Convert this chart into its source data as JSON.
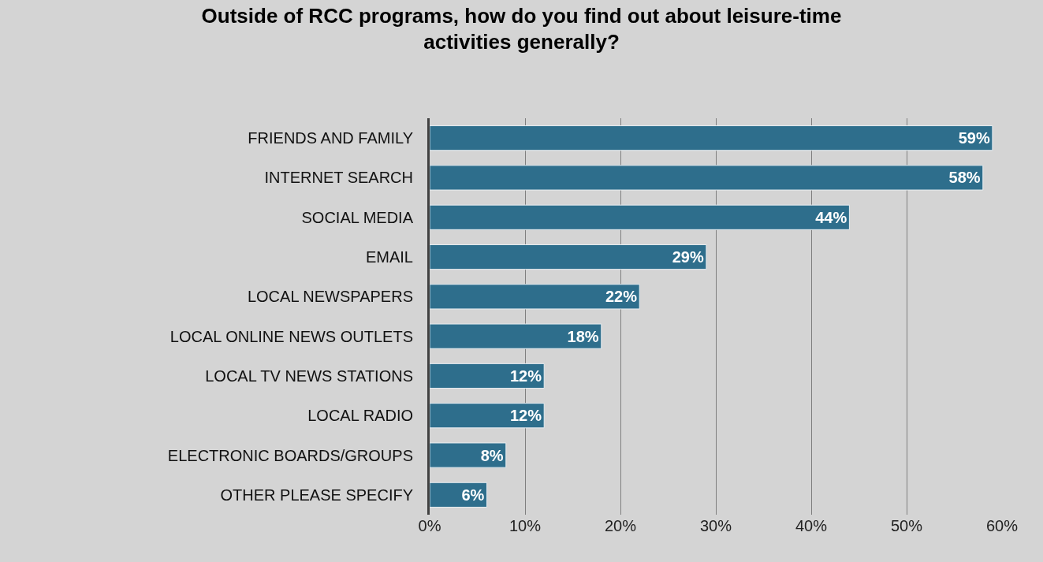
{
  "chart_data": {
    "type": "bar",
    "orientation": "horizontal",
    "title": "Outside of RCC programs, how do you find out about leisure-time activities generally?",
    "categories": [
      "FRIENDS AND FAMILY",
      "INTERNET SEARCH",
      "SOCIAL MEDIA",
      "EMAIL",
      "LOCAL NEWSPAPERS",
      "LOCAL ONLINE NEWS OUTLETS",
      "LOCAL TV NEWS STATIONS",
      "LOCAL RADIO",
      "ELECTRONIC BOARDS/GROUPS",
      "OTHER PLEASE SPECIFY"
    ],
    "values": [
      59,
      58,
      44,
      29,
      22,
      18,
      12,
      12,
      8,
      6
    ],
    "value_labels": [
      "59%",
      "58%",
      "44%",
      "29%",
      "22%",
      "18%",
      "12%",
      "12%",
      "8%",
      "6%"
    ],
    "color": "#2e6e8c",
    "xlim": [
      0,
      60
    ],
    "xticks": [
      {
        "value": 0,
        "label": "0%"
      },
      {
        "value": 10,
        "label": "10%"
      },
      {
        "value": 20,
        "label": "20%"
      },
      {
        "value": 30,
        "label": "30%"
      },
      {
        "value": 40,
        "label": "40%"
      },
      {
        "value": 50,
        "label": "50%"
      },
      {
        "value": 60,
        "label": "60%"
      }
    ],
    "grid": "x"
  }
}
